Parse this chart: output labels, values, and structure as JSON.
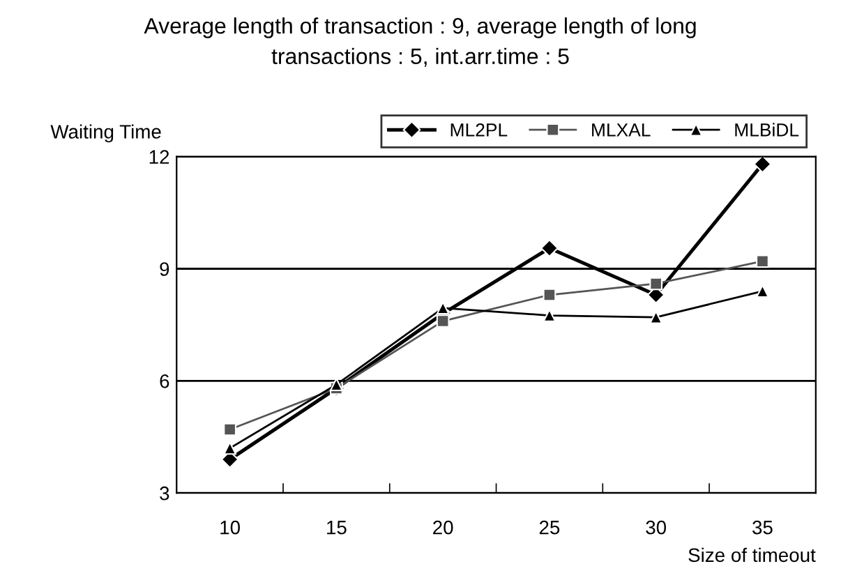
{
  "chart_data": {
    "type": "line",
    "title": "Average length of transaction : 9, average length of long\ntransactions : 5, int.arr.time : 5",
    "xlabel": "Size of timeout",
    "ylabel": "Waiting Time",
    "categories": [
      "10",
      "15",
      "20",
      "25",
      "30",
      "35"
    ],
    "series": [
      {
        "name": "ML2PL",
        "color": "#000000",
        "marker": "diamond",
        "values": [
          3.9,
          5.8,
          7.8,
          9.55,
          8.3,
          11.8
        ]
      },
      {
        "name": "MLXAL",
        "color": "#555555",
        "marker": "square",
        "values": [
          4.7,
          5.8,
          7.6,
          8.3,
          8.6,
          9.2
        ]
      },
      {
        "name": "MLBiDL",
        "color": "#000000",
        "marker": "triangle",
        "values": [
          4.2,
          5.9,
          7.95,
          7.75,
          7.7,
          8.4
        ]
      }
    ],
    "ylim": [
      3,
      12
    ],
    "yticks": [
      3,
      6,
      9,
      12
    ],
    "grid": "y",
    "legend": "top right",
    "line_style": "solid"
  }
}
